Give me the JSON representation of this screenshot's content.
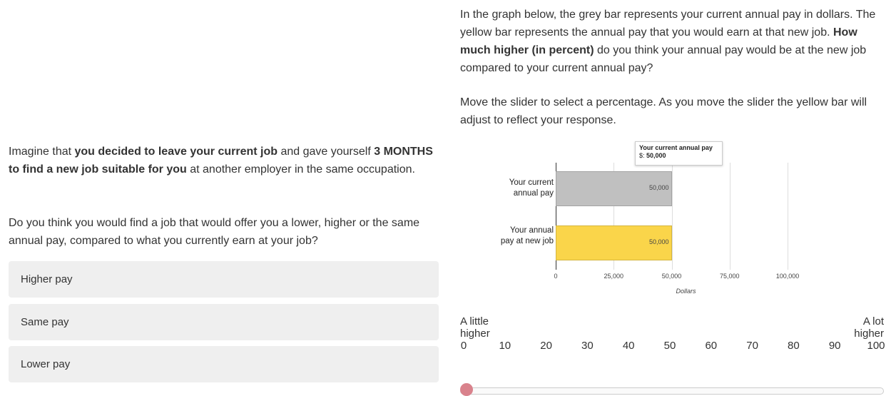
{
  "left": {
    "intro": [
      {
        "text": "Imagine that ",
        "bold": false
      },
      {
        "text": "you decided to leave your current job",
        "bold": true
      },
      {
        "text": " and gave yourself ",
        "bold": false
      },
      {
        "text": "3 MONTHS to find a new job suitable for you",
        "bold": true
      },
      {
        "text": " at another employer in the same occupation.",
        "bold": false
      }
    ],
    "question": "Do you think you would find a job that would offer you a lower, higher or the same annual pay, compared to what you currently earn at your job?",
    "options": [
      "Higher pay",
      "Same pay",
      "Lower pay"
    ]
  },
  "right": {
    "instructions": [
      {
        "text": "In the graph below, the grey bar represents your current annual pay in dollars. The yellow bar represents the annual pay that you would earn at that new job. ",
        "bold": false
      },
      {
        "text": "How much higher (in percent)",
        "bold": true
      },
      {
        "text": " do you think your annual pay would be at the new job compared to your current annual pay?",
        "bold": false
      }
    ],
    "slider_instructions": "Move the slider to select a percentage. As you move the slider the yellow bar will adjust to reflect your response.",
    "chart_data": {
      "type": "bar",
      "orientation": "horizontal",
      "categories": [
        "Your current annual pay",
        "Your annual pay at new job"
      ],
      "values": [
        50000,
        50000
      ],
      "value_labels": [
        "50,000",
        "50,000"
      ],
      "colors": [
        "#c0c0c0",
        "#fad54a"
      ],
      "xlim": [
        0,
        100000
      ],
      "xticks": [
        0,
        {
          "value": 25000,
          "label": "25,000"
        },
        {
          "value": 50000,
          "label": "50,000"
        },
        {
          "value": 75000,
          "label": "75,000"
        },
        {
          "value": 100000,
          "label": "100,000"
        }
      ],
      "xlabel": "Dollars",
      "grid": true,
      "tooltip": {
        "title": "Your current annual pay",
        "prefix": "$:"
      }
    },
    "slider": {
      "min_label": "A little higher",
      "max_label": "A lot higher",
      "ticks": [
        0,
        10,
        20,
        30,
        40,
        50,
        60,
        70,
        80,
        90,
        100
      ],
      "value": 0
    }
  }
}
